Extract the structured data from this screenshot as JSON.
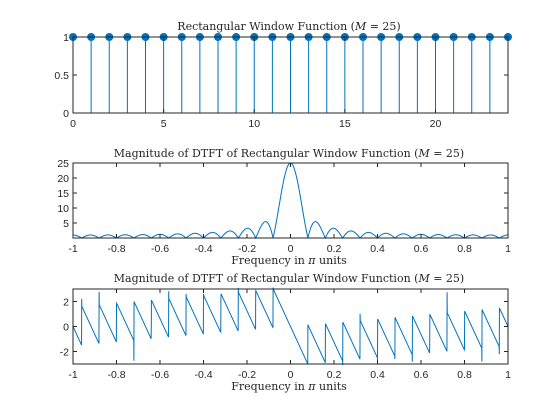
{
  "colors": {
    "series": "#0072BD",
    "axis": "#262626"
  },
  "chart_data": [
    {
      "type": "stem",
      "title": "Rectangular Window Function ($M = 25$)",
      "title_text": "Rectangular Window Function (",
      "title_var": "M",
      "title_rest": " = 25)",
      "xlabel": "",
      "ylabel": "",
      "xlim": [
        0,
        24
      ],
      "ylim": [
        0,
        1
      ],
      "xticks": [
        0,
        5,
        10,
        15,
        20
      ],
      "xtick_labels": [
        "0",
        "5",
        "10",
        "15",
        "20"
      ],
      "yticks": [
        0,
        0.5,
        1
      ],
      "ytick_labels": [
        "0",
        "0.5",
        "1"
      ],
      "x": [
        0,
        1,
        2,
        3,
        4,
        5,
        6,
        7,
        8,
        9,
        10,
        11,
        12,
        13,
        14,
        15,
        16,
        17,
        18,
        19,
        20,
        21,
        22,
        23,
        24
      ],
      "y": [
        1,
        1,
        1,
        1,
        1,
        1,
        1,
        1,
        1,
        1,
        1,
        1,
        1,
        1,
        1,
        1,
        1,
        1,
        1,
        1,
        1,
        1,
        1,
        1,
        1
      ],
      "grid": false
    },
    {
      "type": "line",
      "title_text": "Magnitude of DTFT of Rectangular Window Function (",
      "title_var": "M",
      "title_rest": " = 25)",
      "xlabel_pre": "Frequency in ",
      "xlabel_sym": "π",
      "xlabel_post": " units",
      "xlim": [
        -1,
        1
      ],
      "ylim": [
        0,
        25
      ],
      "xticks": [
        -1,
        -0.8,
        -0.6,
        -0.4,
        -0.2,
        0,
        0.2,
        0.4,
        0.6,
        0.8,
        1
      ],
      "xtick_labels": [
        "-1",
        "-0.8",
        "-0.6",
        "-0.4",
        "-0.2",
        "0",
        "0.2",
        "0.4",
        "0.6",
        "0.8",
        "1"
      ],
      "yticks": [
        5,
        10,
        15,
        20,
        25
      ],
      "ytick_labels": [
        "5",
        "10",
        "15",
        "20",
        "25"
      ],
      "function": "abs(sin(25*pi*w/2)/sin(pi*w/2))",
      "grid": false
    },
    {
      "type": "line",
      "title_text": "Magnitude of DTFT of Rectangular Window Function (",
      "title_var": "M",
      "title_rest": " = 25)",
      "xlabel_pre": "Frequency in ",
      "xlabel_sym": "π",
      "xlabel_post": " units",
      "xlim": [
        -1,
        1
      ],
      "ylim": [
        -3,
        3
      ],
      "xticks": [
        -1,
        -0.8,
        -0.6,
        -0.4,
        -0.2,
        0,
        0.2,
        0.4,
        0.6,
        0.8,
        1
      ],
      "xtick_labels": [
        "-1",
        "-0.8",
        "-0.6",
        "-0.4",
        "-0.2",
        "0",
        "0.2",
        "0.4",
        "0.6",
        "0.8",
        "1"
      ],
      "yticks": [
        -2,
        0,
        2
      ],
      "ytick_labels": [
        "-2",
        "0",
        "2"
      ],
      "function": "angle of DTFT of 25-point rectangular window",
      "grid": false
    }
  ]
}
